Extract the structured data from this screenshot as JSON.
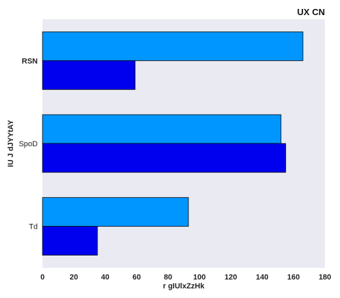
{
  "chart_data": {
    "type": "bar",
    "orientation": "horizontal",
    "title": "UX CN",
    "xlabel": "r gIUlxZzHk",
    "ylabel": "IU J dJYYtAY",
    "categories": [
      "RSN",
      "SpoD",
      "Td"
    ],
    "bold_categories": [
      "RSN"
    ],
    "series": [
      {
        "values": [
          166,
          152,
          93
        ],
        "color": "#0096ff"
      },
      {
        "values": [
          59,
          155,
          35
        ],
        "color": "#0000ee"
      }
    ],
    "xlim": [
      0,
      180
    ],
    "xticks": [
      0,
      20,
      40,
      60,
      80,
      100,
      120,
      140,
      160,
      180
    ],
    "grid": false,
    "legend": "none",
    "background": "#eaeaf2"
  }
}
